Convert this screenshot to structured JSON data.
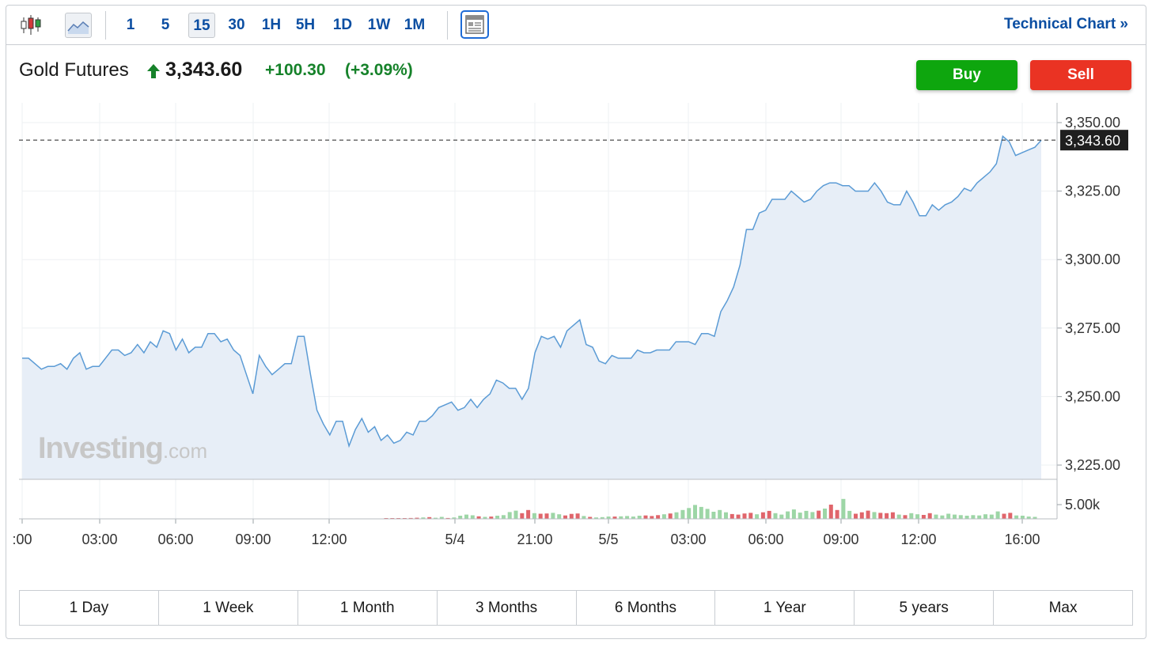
{
  "toolbar": {
    "chart_type_icons": [
      "candlestick-icon",
      "line-chart-icon"
    ],
    "intervals": [
      "1",
      "5",
      "15",
      "30",
      "1H",
      "5H",
      "1D",
      "1W",
      "1M"
    ],
    "active_interval": "15",
    "layout_icon": "layout-icon",
    "technical_chart_label": "Technical Chart »"
  },
  "instrument": {
    "name": "Gold Futures",
    "last_price": "3,343.60",
    "change": "+100.30",
    "change_pct": "(+3.09%)",
    "direction": "up"
  },
  "trade": {
    "buy_label": "Buy",
    "sell_label": "Sell"
  },
  "watermark": {
    "brand": "Investing",
    "suffix": ".com"
  },
  "range_buttons": [
    "1 Day",
    "1 Week",
    "1 Month",
    "3 Months",
    "6 Months",
    "1 Year",
    "5 years",
    "Max"
  ],
  "colors": {
    "link": "#0b4ea2",
    "up": "#16822a",
    "buy": "#0ea60e",
    "sell": "#ea3323",
    "line": "#5b9bd5",
    "area": "#e7eef7",
    "vol_up": "#9dd6a6",
    "vol_down": "#e0656b"
  },
  "chart_data": {
    "type": "area",
    "y_ticks": [
      "3,350.00",
      "3,325.00",
      "3,300.00",
      "3,275.00",
      "3,250.00",
      "3,225.00"
    ],
    "ylim": [
      3220,
      3354
    ],
    "volume_tick": "5.00k",
    "x_ticks": [
      ":00",
      "03:00",
      "06:00",
      "09:00",
      "12:00",
      "5/4",
      "21:00",
      "5/5",
      "03:00",
      "06:00",
      "09:00",
      "12:00",
      "16:00"
    ],
    "current_price": 3343.6,
    "current_price_label": "3,343.60",
    "series": [
      {
        "values": [
          3264,
          3264,
          3262,
          3260,
          3261,
          3261,
          3262,
          3260,
          3264,
          3266,
          3260,
          3261,
          3261,
          3264,
          3267,
          3267,
          3265,
          3266,
          3269,
          3266,
          3270,
          3268,
          3274,
          3273,
          3267,
          3271,
          3266,
          3268,
          3268,
          3273,
          3273,
          3270,
          3271,
          3267,
          3265,
          3258,
          3251,
          3265,
          3261,
          3258,
          3260,
          3262,
          3262,
          3272,
          3272,
          3258,
          3245,
          3240,
          3236,
          3241,
          3241,
          3232,
          3238,
          3242,
          3237,
          3239,
          3234,
          3236,
          3233,
          3234,
          3237,
          3236,
          3241,
          3241,
          3243,
          3246,
          3247,
          3248,
          3245,
          3246,
          3249,
          3246,
          3249,
          3251,
          3256,
          3255,
          3253,
          3253,
          3249,
          3253,
          3266,
          3272,
          3271,
          3272,
          3268,
          3274,
          3276,
          3278,
          3269,
          3268,
          3263,
          3262,
          3265,
          3264,
          3264,
          3264,
          3267,
          3266,
          3266,
          3267,
          3267,
          3267,
          3270,
          3270,
          3270,
          3269,
          3273,
          3273,
          3272,
          3281,
          3285,
          3290,
          3298,
          3311,
          3311,
          3317,
          3318,
          3322,
          3322,
          3322,
          3325,
          3323,
          3321,
          3322,
          3325,
          3327,
          3328,
          3328,
          3327,
          3327,
          3325,
          3325,
          3325,
          3328,
          3325,
          3321,
          3320,
          3320,
          3325,
          3321,
          3316,
          3316,
          3320,
          3318,
          3320,
          3321,
          3323,
          3326,
          3325,
          3328,
          3330,
          3332,
          3335,
          3345,
          3343,
          3338,
          3339,
          3340,
          3341,
          3343.6
        ]
      }
    ],
    "volume": [
      {
        "v": 0.04,
        "d": "down"
      },
      {
        "v": 0.02,
        "d": "down"
      },
      {
        "v": 0.04,
        "d": "down"
      },
      {
        "v": 0.03,
        "d": "down"
      },
      {
        "v": 0.06,
        "d": "down"
      },
      {
        "v": 0.08,
        "d": "down"
      },
      {
        "v": 0.1,
        "d": "up"
      },
      {
        "v": 0.12,
        "d": "down"
      },
      {
        "v": 0.08,
        "d": "up"
      },
      {
        "v": 0.14,
        "d": "up"
      },
      {
        "v": 0.06,
        "d": "down"
      },
      {
        "v": 0.1,
        "d": "up"
      },
      {
        "v": 0.22,
        "d": "up"
      },
      {
        "v": 0.3,
        "d": "up"
      },
      {
        "v": 0.25,
        "d": "up"
      },
      {
        "v": 0.18,
        "d": "down"
      },
      {
        "v": 0.14,
        "d": "up"
      },
      {
        "v": 0.16,
        "d": "down"
      },
      {
        "v": 0.22,
        "d": "up"
      },
      {
        "v": 0.26,
        "d": "up"
      },
      {
        "v": 0.48,
        "d": "up"
      },
      {
        "v": 0.58,
        "d": "up"
      },
      {
        "v": 0.4,
        "d": "down"
      },
      {
        "v": 0.62,
        "d": "down"
      },
      {
        "v": 0.4,
        "d": "up"
      },
      {
        "v": 0.36,
        "d": "down"
      },
      {
        "v": 0.38,
        "d": "down"
      },
      {
        "v": 0.42,
        "d": "up"
      },
      {
        "v": 0.32,
        "d": "up"
      },
      {
        "v": 0.24,
        "d": "down"
      },
      {
        "v": 0.35,
        "d": "down"
      },
      {
        "v": 0.38,
        "d": "down"
      },
      {
        "v": 0.2,
        "d": "up"
      },
      {
        "v": 0.14,
        "d": "down"
      },
      {
        "v": 0.1,
        "d": "up"
      },
      {
        "v": 0.12,
        "d": "up"
      },
      {
        "v": 0.16,
        "d": "up"
      },
      {
        "v": 0.16,
        "d": "down"
      },
      {
        "v": 0.18,
        "d": "up"
      },
      {
        "v": 0.2,
        "d": "up"
      },
      {
        "v": 0.16,
        "d": "up"
      },
      {
        "v": 0.22,
        "d": "up"
      },
      {
        "v": 0.24,
        "d": "down"
      },
      {
        "v": 0.2,
        "d": "down"
      },
      {
        "v": 0.26,
        "d": "down"
      },
      {
        "v": 0.32,
        "d": "up"
      },
      {
        "v": 0.38,
        "d": "down"
      },
      {
        "v": 0.46,
        "d": "up"
      },
      {
        "v": 0.62,
        "d": "up"
      },
      {
        "v": 0.76,
        "d": "up"
      },
      {
        "v": 0.98,
        "d": "up"
      },
      {
        "v": 0.84,
        "d": "up"
      },
      {
        "v": 0.7,
        "d": "up"
      },
      {
        "v": 0.5,
        "d": "up"
      },
      {
        "v": 0.62,
        "d": "up"
      },
      {
        "v": 0.46,
        "d": "up"
      },
      {
        "v": 0.34,
        "d": "down"
      },
      {
        "v": 0.3,
        "d": "down"
      },
      {
        "v": 0.38,
        "d": "down"
      },
      {
        "v": 0.42,
        "d": "down"
      },
      {
        "v": 0.32,
        "d": "up"
      },
      {
        "v": 0.46,
        "d": "down"
      },
      {
        "v": 0.56,
        "d": "down"
      },
      {
        "v": 0.4,
        "d": "up"
      },
      {
        "v": 0.3,
        "d": "up"
      },
      {
        "v": 0.52,
        "d": "up"
      },
      {
        "v": 0.66,
        "d": "up"
      },
      {
        "v": 0.44,
        "d": "up"
      },
      {
        "v": 0.56,
        "d": "up"
      },
      {
        "v": 0.48,
        "d": "up"
      },
      {
        "v": 0.58,
        "d": "down"
      },
      {
        "v": 0.72,
        "d": "up"
      },
      {
        "v": 1.0,
        "d": "down"
      },
      {
        "v": 0.62,
        "d": "down"
      },
      {
        "v": 1.4,
        "d": "up"
      },
      {
        "v": 0.56,
        "d": "up"
      },
      {
        "v": 0.36,
        "d": "down"
      },
      {
        "v": 0.46,
        "d": "down"
      },
      {
        "v": 0.58,
        "d": "down"
      },
      {
        "v": 0.48,
        "d": "up"
      },
      {
        "v": 0.42,
        "d": "down"
      },
      {
        "v": 0.4,
        "d": "down"
      },
      {
        "v": 0.46,
        "d": "down"
      },
      {
        "v": 0.3,
        "d": "up"
      },
      {
        "v": 0.26,
        "d": "down"
      },
      {
        "v": 0.4,
        "d": "up"
      },
      {
        "v": 0.32,
        "d": "up"
      },
      {
        "v": 0.28,
        "d": "down"
      },
      {
        "v": 0.4,
        "d": "down"
      },
      {
        "v": 0.3,
        "d": "up"
      },
      {
        "v": 0.24,
        "d": "up"
      },
      {
        "v": 0.36,
        "d": "up"
      },
      {
        "v": 0.3,
        "d": "up"
      },
      {
        "v": 0.26,
        "d": "up"
      },
      {
        "v": 0.22,
        "d": "up"
      },
      {
        "v": 0.26,
        "d": "up"
      },
      {
        "v": 0.24,
        "d": "up"
      },
      {
        "v": 0.32,
        "d": "up"
      },
      {
        "v": 0.3,
        "d": "up"
      },
      {
        "v": 0.52,
        "d": "up"
      },
      {
        "v": 0.36,
        "d": "down"
      },
      {
        "v": 0.42,
        "d": "down"
      },
      {
        "v": 0.24,
        "d": "up"
      },
      {
        "v": 0.22,
        "d": "up"
      },
      {
        "v": 0.16,
        "d": "up"
      },
      {
        "v": 0.14,
        "d": "up"
      }
    ],
    "grid": true
  }
}
